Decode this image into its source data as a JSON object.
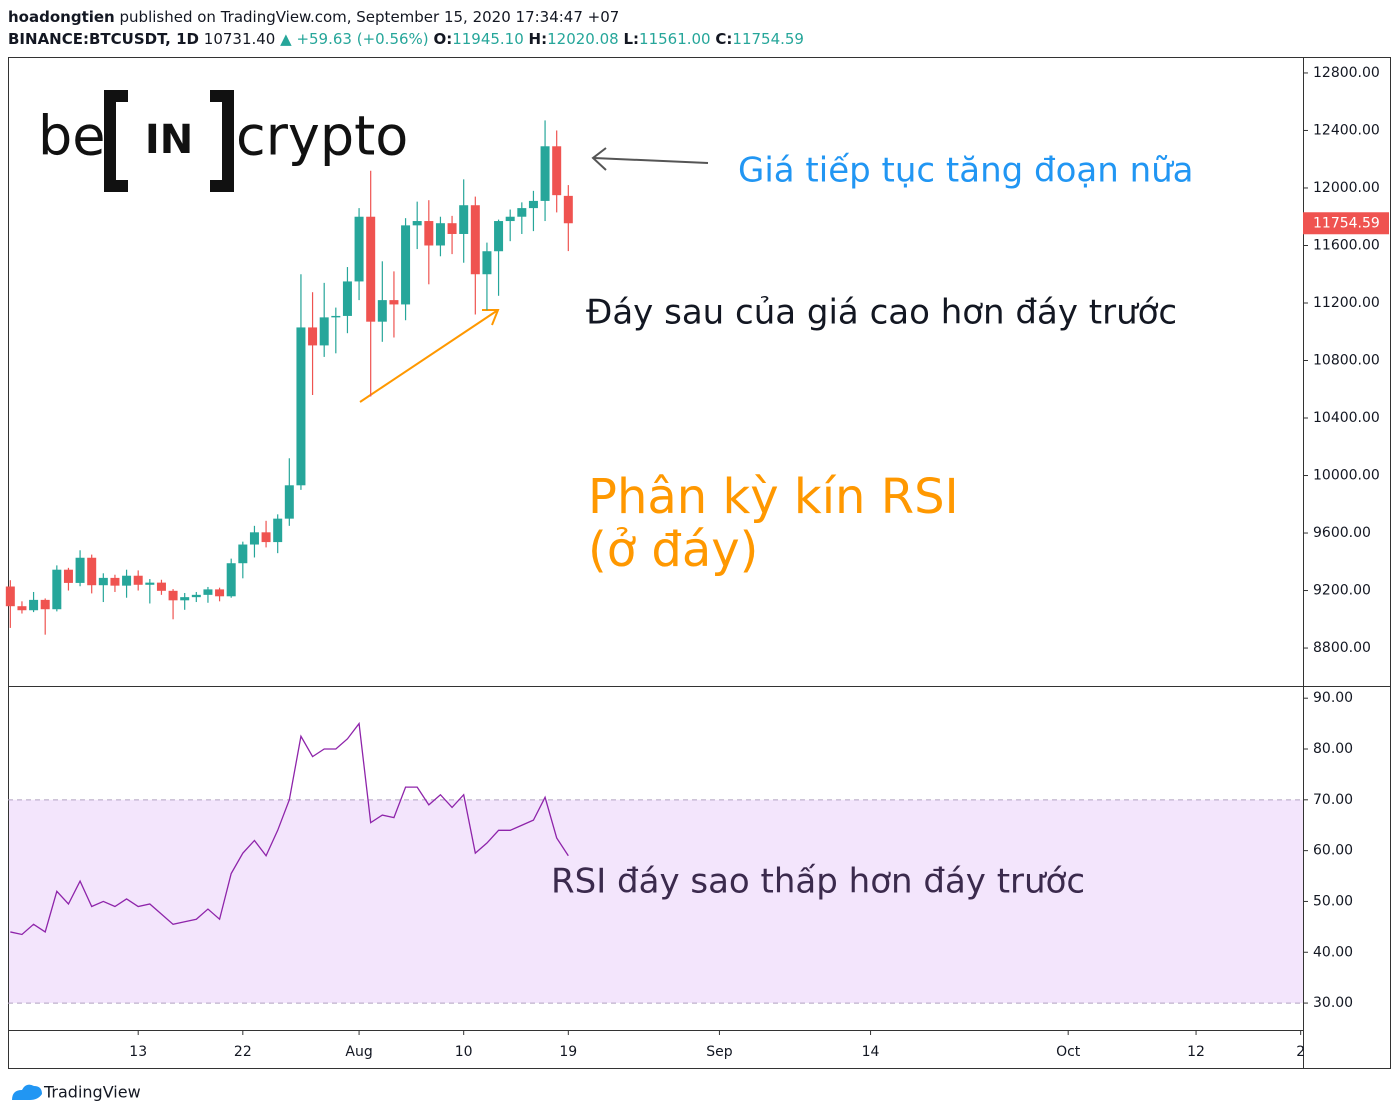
{
  "header": {
    "author": "hoadongtien",
    "published": "published on TradingView.com, September 15, 2020 17:34:47 +07",
    "symbol": "BINANCE:BTCUSDT, 1D",
    "price": "10731.40",
    "change": "▲ +59.63 (+0.56%)",
    "ohlc": [
      {
        "label": "O:",
        "value": "11945.10"
      },
      {
        "label": "H:",
        "value": "12020.08"
      },
      {
        "label": "L:",
        "value": "11561.00"
      },
      {
        "label": "C:",
        "value": "11754.59"
      }
    ]
  },
  "logo": {
    "left": "be",
    "mid": "IN",
    "right": "crypto"
  },
  "footer": "TradingView",
  "chart_data": [
    {
      "type": "candlestick",
      "up_color": "#26a69a",
      "down_color": "#ef5350",
      "x": [
        2,
        3,
        4,
        5,
        6,
        7,
        8,
        9,
        10,
        11,
        12,
        13,
        14,
        15,
        16,
        17,
        18,
        19,
        20,
        21,
        22,
        23,
        24,
        25,
        26,
        27,
        28,
        29,
        30,
        31,
        32,
        33,
        34,
        35,
        36,
        37,
        38,
        39,
        40,
        41,
        42,
        43,
        44,
        45,
        46,
        47,
        48,
        49,
        50
      ],
      "open": [
        9228,
        9091,
        9063,
        9135,
        9070,
        9345,
        9253,
        9428,
        9237,
        9288,
        9234,
        9303,
        9240,
        9255,
        9198,
        9132,
        9154,
        9170,
        9208,
        9160,
        9390,
        9520,
        9605,
        9537,
        9700,
        9932,
        11030,
        10905,
        11100,
        11110,
        11350,
        11800,
        11070,
        11220,
        11190,
        11740,
        11770,
        11600,
        11755,
        11680,
        11880,
        11400,
        11560,
        11770,
        11800,
        11860,
        11910,
        12290,
        11945.1
      ],
      "high": [
        9272,
        9125,
        9190,
        9145,
        9375,
        9358,
        9480,
        9450,
        9320,
        9310,
        9345,
        9340,
        9280,
        9275,
        9210,
        9183,
        9190,
        9225,
        9220,
        9422,
        9540,
        9650,
        9685,
        9730,
        10120,
        11400,
        11275,
        11340,
        11168,
        11450,
        11860,
        12120,
        11490,
        11420,
        11790,
        11905,
        11915,
        11800,
        11806,
        12060,
        11940,
        11620,
        11780,
        11850,
        11900,
        11980,
        12470,
        12400,
        12020.08
      ],
      "low": [
        8940,
        9040,
        9050,
        8893,
        9055,
        9200,
        9230,
        9180,
        9120,
        9190,
        9150,
        9200,
        9110,
        9170,
        9000,
        9066,
        9120,
        9115,
        9125,
        9150,
        9285,
        9430,
        9500,
        9460,
        9650,
        9900,
        10560,
        10825,
        10850,
        10990,
        11220,
        10550,
        10930,
        10960,
        11080,
        11575,
        11330,
        11525,
        11540,
        11480,
        11120,
        11150,
        11250,
        11630,
        11680,
        11700,
        11770,
        11830,
        11561.0
      ],
      "close": [
        9091,
        9063,
        9135,
        9070,
        9345,
        9253,
        9428,
        9237,
        9288,
        9234,
        9303,
        9240,
        9255,
        9198,
        9132,
        9154,
        9170,
        9208,
        9160,
        9390,
        9520,
        9605,
        9537,
        9700,
        9932,
        11030,
        10905,
        11100,
        11110,
        11350,
        11800,
        11070,
        11220,
        11190,
        11740,
        11770,
        11600,
        11755,
        11680,
        11880,
        11400,
        11560,
        11770,
        11800,
        11860,
        11910,
        12290,
        11950,
        11754.59
      ],
      "last_price_label": "11754.59",
      "xlim": [
        1.8,
        113.2
      ],
      "ylim": [
        8536,
        12911
      ],
      "yticks": [
        {
          "value": 8800,
          "label": "8800.00"
        },
        {
          "value": 9200,
          "label": "9200.00"
        },
        {
          "value": 9600,
          "label": "9600.00"
        },
        {
          "value": 10000,
          "label": "10000.00"
        },
        {
          "value": 10400,
          "label": "10400.00"
        },
        {
          "value": 10800,
          "label": "10800.00"
        },
        {
          "value": 11200,
          "label": "11200.00"
        },
        {
          "value": 11600,
          "label": "11600.00"
        },
        {
          "value": 12000,
          "label": "12000.00"
        },
        {
          "value": 12400,
          "label": "12400.00"
        },
        {
          "value": 12800,
          "label": "12800.00"
        }
      ],
      "annotations": [
        {
          "text": "Giá tiếp tục tăng đoạn nữa",
          "color": "#2196f3"
        },
        {
          "text": "Đáy sau của giá cao hơn đáy trước",
          "color": "#131722"
        },
        {
          "text": "Phân kỳ kín RSI",
          "color": "#ff9800"
        },
        {
          "text": "(ở đáy)",
          "color": "#ff9800"
        }
      ]
    },
    {
      "type": "line",
      "color": "#8e24aa",
      "band": [
        30,
        70
      ],
      "band_color": "#f3e5fc",
      "x": [
        2,
        3,
        4,
        5,
        6,
        7,
        8,
        9,
        10,
        11,
        12,
        13,
        14,
        15,
        16,
        17,
        18,
        19,
        20,
        21,
        22,
        23,
        24,
        25,
        26,
        27,
        28,
        29,
        30,
        31,
        32,
        33,
        34,
        35,
        36,
        37,
        38,
        39,
        40,
        41,
        42,
        43,
        44,
        45,
        46,
        47,
        48,
        49,
        50
      ],
      "values": [
        44,
        43.5,
        45.5,
        44,
        52,
        49.5,
        54,
        49,
        50,
        49,
        50.5,
        49,
        49.5,
        47.5,
        45.5,
        46,
        46.5,
        48.5,
        46.5,
        55.5,
        59.5,
        62,
        59,
        64,
        70,
        82.5,
        78.5,
        80,
        80,
        82,
        85,
        65.5,
        67,
        66.5,
        72.5,
        72.5,
        69,
        71,
        68.5,
        71,
        59.5,
        61.5,
        64,
        64,
        65,
        66,
        70.5,
        62.5,
        59
      ],
      "xlim": [
        1.8,
        113.2
      ],
      "ylim": [
        24.7,
        92.4
      ],
      "yticks": [
        {
          "value": 30,
          "label": "30.00"
        },
        {
          "value": 40,
          "label": "40.00"
        },
        {
          "value": 50,
          "label": "50.00"
        },
        {
          "value": 60,
          "label": "60.00"
        },
        {
          "value": 70,
          "label": "70.00"
        },
        {
          "value": 80,
          "label": "80.00"
        },
        {
          "value": 90,
          "label": "90.00"
        }
      ],
      "xticks": [
        {
          "value": 13,
          "label": "13"
        },
        {
          "value": 22,
          "label": "22"
        },
        {
          "value": 32,
          "label": "Aug"
        },
        {
          "value": 41,
          "label": "10"
        },
        {
          "value": 50,
          "label": "19"
        },
        {
          "value": 63,
          "label": "Sep"
        },
        {
          "value": 76,
          "label": "14"
        },
        {
          "value": 93,
          "label": "Oct"
        },
        {
          "value": 104,
          "label": "12"
        },
        {
          "value": 113,
          "label": "2"
        }
      ],
      "annotations": [
        {
          "text": "RSI đáy sao thấp hơn đáy trước",
          "color": "#3b2a4d"
        }
      ]
    }
  ]
}
